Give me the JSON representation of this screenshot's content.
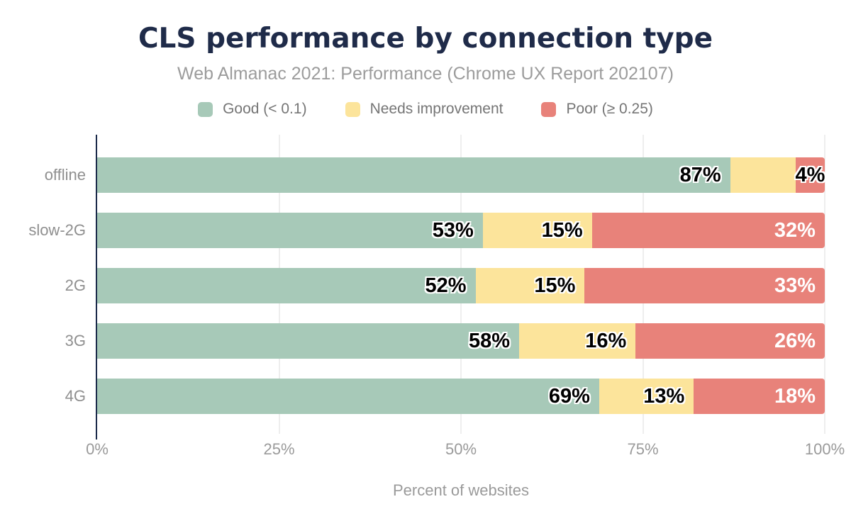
{
  "chart_data": {
    "type": "bar",
    "orientation": "horizontal",
    "stacked": true,
    "title": "CLS performance by connection type",
    "subtitle": "Web Almanac 2021: Performance (Chrome UX Report 202107)",
    "xlabel": "Percent of websites",
    "xlim": [
      0,
      100
    ],
    "grid": "vertical",
    "legend_position": "top",
    "x_ticks": [
      {
        "value": 0,
        "label": "0%"
      },
      {
        "value": 25,
        "label": "25%"
      },
      {
        "value": 50,
        "label": "50%"
      },
      {
        "value": 75,
        "label": "75%"
      },
      {
        "value": 100,
        "label": "100%"
      }
    ],
    "categories": [
      "offline",
      "slow-2G",
      "2G",
      "3G",
      "4G"
    ],
    "series": [
      {
        "name": "Good (< 0.1)",
        "color": "#a7c9b8",
        "values": [
          87,
          53,
          52,
          58,
          69
        ],
        "labels": [
          "87%",
          "53%",
          "52%",
          "58%",
          "69%"
        ],
        "label_style": [
          "dark",
          "dark",
          "dark",
          "dark",
          "dark"
        ]
      },
      {
        "name": "Needs improvement",
        "color": "#fce49b",
        "values": [
          9,
          15,
          15,
          16,
          13
        ],
        "labels": [
          "",
          "15%",
          "15%",
          "16%",
          "13%"
        ],
        "label_style": [
          "",
          "dark",
          "dark",
          "dark",
          "dark"
        ]
      },
      {
        "name": "Poor (≥ 0.25)",
        "color": "#e8827a",
        "values": [
          4,
          32,
          33,
          26,
          18
        ],
        "labels": [
          "4%",
          "32%",
          "33%",
          "26%",
          "18%"
        ],
        "label_style": [
          "dark-center",
          "light",
          "light",
          "light",
          "light"
        ]
      }
    ],
    "colors": {
      "title": "#1f2b49",
      "subtitle": "#9c9c9c",
      "axis_line": "#1b2a4a",
      "gridline": "#eeeeee",
      "axis_text": "#9a9a9a"
    }
  }
}
